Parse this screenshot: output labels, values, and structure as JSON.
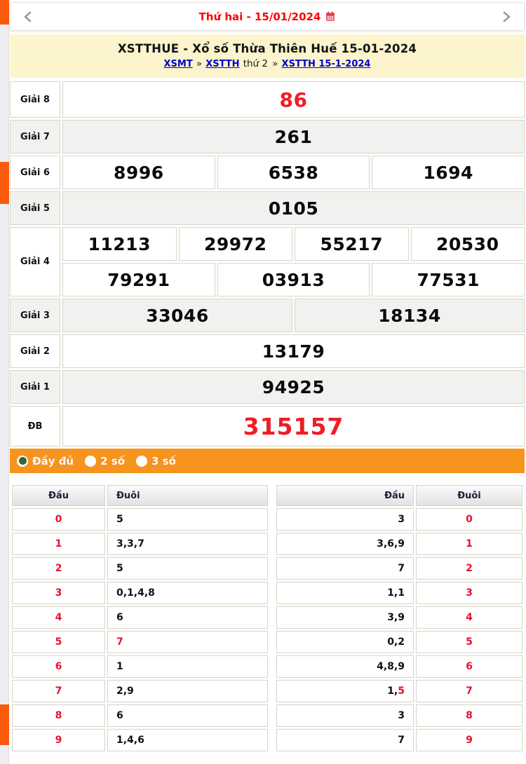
{
  "colors": {
    "accent_orange": "#f7941e",
    "strip_orange": "#fb5a0d",
    "prize_red": "#ef1d25",
    "digit_red": "#e8112d",
    "link_blue": "#0000cc",
    "header_yellow": "#fcf4cc"
  },
  "icons": {
    "prev": "chevron-left-icon",
    "next": "chevron-right-icon",
    "calendar": "calendar-icon"
  },
  "datebar": {
    "date_label": "Thứ hai -  15/01/2024"
  },
  "header": {
    "title": "XSTTHUE - Xổ số Thừa Thiên Huế 15-01-2024",
    "breadcrumb": [
      {
        "text": "XSMT",
        "link": true
      },
      {
        "text": "»",
        "link": false
      },
      {
        "text": "XSTTH",
        "link": true
      },
      {
        "text": "thứ 2",
        "link": false
      },
      {
        "text": "»",
        "link": false
      },
      {
        "text": "XSTTH 15-1-2024",
        "link": true
      }
    ]
  },
  "results": {
    "rows": [
      {
        "label": "Giải 8",
        "lines": [
          [
            "86"
          ]
        ],
        "red": true,
        "size": "big",
        "shade": false
      },
      {
        "label": "Giải 7",
        "lines": [
          [
            "261"
          ]
        ],
        "red": false,
        "size": "std",
        "shade": true
      },
      {
        "label": "Giải 6",
        "lines": [
          [
            "8996",
            "6538",
            "1694"
          ]
        ],
        "red": false,
        "size": "std",
        "shade": false
      },
      {
        "label": "Giải 5",
        "lines": [
          [
            "0105"
          ]
        ],
        "red": false,
        "size": "std",
        "shade": true
      },
      {
        "label": "Giải 4",
        "lines": [
          [
            "11213",
            "29972",
            "55217",
            "20530"
          ],
          [
            "79291",
            "03913",
            "77531"
          ]
        ],
        "red": false,
        "size": "dbl",
        "shade": false
      },
      {
        "label": "Giải 3",
        "lines": [
          [
            "33046",
            "18134"
          ]
        ],
        "red": false,
        "size": "std",
        "shade": true
      },
      {
        "label": "Giải 2",
        "lines": [
          [
            "13179"
          ]
        ],
        "red": false,
        "size": "std",
        "shade": false
      },
      {
        "label": "Giải 1",
        "lines": [
          [
            "94925"
          ]
        ],
        "red": false,
        "size": "std",
        "shade": true
      },
      {
        "label": "ĐB",
        "lines": [
          [
            "315157"
          ]
        ],
        "red": true,
        "size": "huge",
        "shade": false
      }
    ]
  },
  "filter": {
    "options": [
      {
        "label": "Đầy đủ",
        "selected": true
      },
      {
        "label": "2 số",
        "selected": false
      },
      {
        "label": "3 số",
        "selected": false
      }
    ]
  },
  "tails": {
    "left": {
      "head_header": "Đầu",
      "tail_header": "Đuôi",
      "rows": [
        {
          "head": "0",
          "tail": "5",
          "tail_red": ""
        },
        {
          "head": "1",
          "tail": "3,3,7",
          "tail_red": ""
        },
        {
          "head": "2",
          "tail": "5",
          "tail_red": ""
        },
        {
          "head": "3",
          "tail": "0,1,4,8",
          "tail_red": ""
        },
        {
          "head": "4",
          "tail": "6",
          "tail_red": ""
        },
        {
          "head": "5",
          "tail": "",
          "tail_red": "7"
        },
        {
          "head": "6",
          "tail": "1",
          "tail_red": ""
        },
        {
          "head": "7",
          "tail": "2,9",
          "tail_red": ""
        },
        {
          "head": "8",
          "tail": "6",
          "tail_red": ""
        },
        {
          "head": "9",
          "tail": "1,4,6",
          "tail_red": ""
        }
      ]
    },
    "right": {
      "head_header": "Đầu",
      "tail_header": "Đuôi",
      "rows": [
        {
          "head": "3",
          "head_red": "",
          "tail": "0"
        },
        {
          "head": "3,6,9",
          "head_red": "",
          "tail": "1"
        },
        {
          "head": "7",
          "head_red": "",
          "tail": "2"
        },
        {
          "head": "1,1",
          "head_red": "",
          "tail": "3"
        },
        {
          "head": "3,9",
          "head_red": "",
          "tail": "4"
        },
        {
          "head": "0,2",
          "head_red": "",
          "tail": "5"
        },
        {
          "head": "4,8,9",
          "head_red": "",
          "tail": "6"
        },
        {
          "head": "1,",
          "head_red": "5",
          "tail": "7"
        },
        {
          "head": "3",
          "head_red": "",
          "tail": "8"
        },
        {
          "head": "7",
          "head_red": "",
          "tail": "9"
        }
      ]
    }
  }
}
